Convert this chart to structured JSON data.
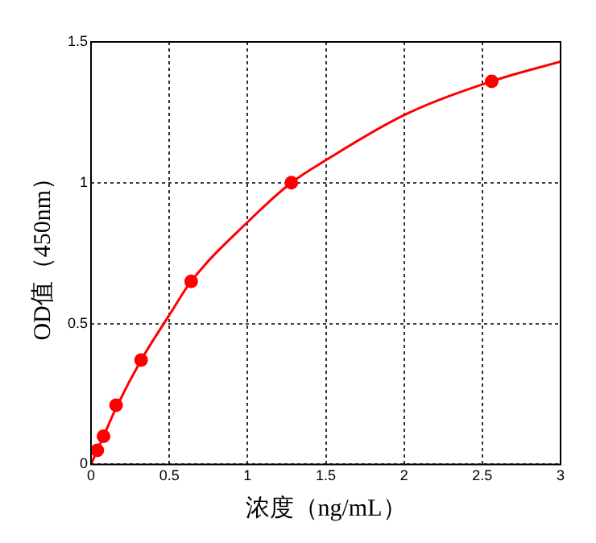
{
  "chart_data": {
    "type": "scatter",
    "xlabel": "浓度（ng/mL）",
    "ylabel": "OD值（450nm）",
    "xlim": [
      0,
      3
    ],
    "xticks": [
      0,
      0.5,
      1,
      1.5,
      2,
      2.5,
      3
    ],
    "ylim": [
      0,
      1.5
    ],
    "yticks": [
      0,
      0.5,
      1,
      1.5
    ],
    "grid": true,
    "legend": false,
    "series": [
      {
        "type": "line",
        "color": "#ff0000",
        "marker": "none",
        "line_style": "solid",
        "x": [
          0,
          0.04,
          0.08,
          0.16,
          0.32,
          0.5,
          0.64,
          1,
          1.28,
          1.5,
          2,
          2.56,
          3
        ],
        "values": [
          0,
          0.05,
          0.1,
          0.2,
          0.37,
          0.53,
          0.65,
          0.86,
          1.0,
          1.08,
          1.24,
          1.36,
          1.43
        ]
      },
      {
        "color": "#ff0000",
        "marker": "circle",
        "x": [
          0.04,
          0.08,
          0.16,
          0.32,
          0.64,
          1.28,
          2.56
        ],
        "values": [
          0.05,
          0.1,
          0.21,
          0.37,
          0.65,
          1.0,
          1.36
        ]
      }
    ]
  }
}
